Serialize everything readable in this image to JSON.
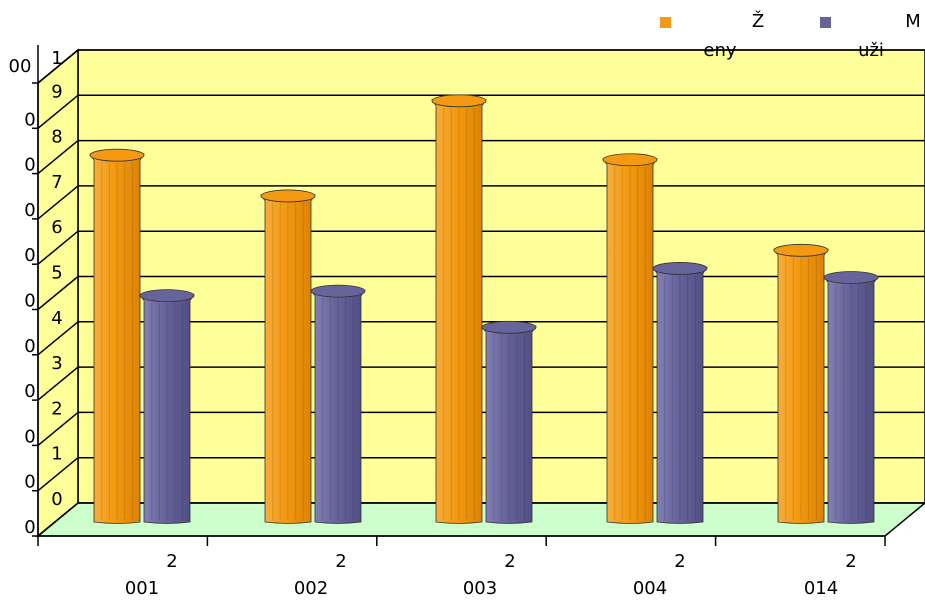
{
  "chart_data": {
    "type": "bar",
    "categories": [
      {
        "top": "2",
        "bottom": "001"
      },
      {
        "top": "2",
        "bottom": "002"
      },
      {
        "top": "2",
        "bottom": "003"
      },
      {
        "top": "2",
        "bottom": "004"
      },
      {
        "top": "2",
        "bottom": "014"
      }
    ],
    "series": [
      {
        "name_top": "Ž",
        "name_bottom": "eny",
        "color": "#f39a12",
        "values": [
          77,
          68,
          89,
          76,
          56
        ]
      },
      {
        "name_top": "M",
        "name_bottom": "uži",
        "color": "#66649a",
        "values": [
          46,
          47,
          39,
          52,
          50
        ]
      }
    ],
    "ylim": [
      0,
      100
    ],
    "y_ticks": [
      {
        "value": 0,
        "digit": "0",
        "side": "0"
      },
      {
        "value": 10,
        "digit": "1",
        "side": "0"
      },
      {
        "value": 20,
        "digit": "2",
        "side": "0"
      },
      {
        "value": 30,
        "digit": "3",
        "side": "0"
      },
      {
        "value": 40,
        "digit": "4",
        "side": "0"
      },
      {
        "value": 50,
        "digit": "5",
        "side": "0"
      },
      {
        "value": 60,
        "digit": "6",
        "side": "0"
      },
      {
        "value": 70,
        "digit": "7",
        "side": "0"
      },
      {
        "value": 80,
        "digit": "8",
        "side": "0"
      },
      {
        "value": 90,
        "digit": "9",
        "side": "0"
      },
      {
        "value": 100,
        "digit": "1",
        "side": "00"
      }
    ],
    "grid": true,
    "legend_position": "top-right",
    "wall_color": "#ffff99",
    "floor_color": "#ccffcc"
  }
}
